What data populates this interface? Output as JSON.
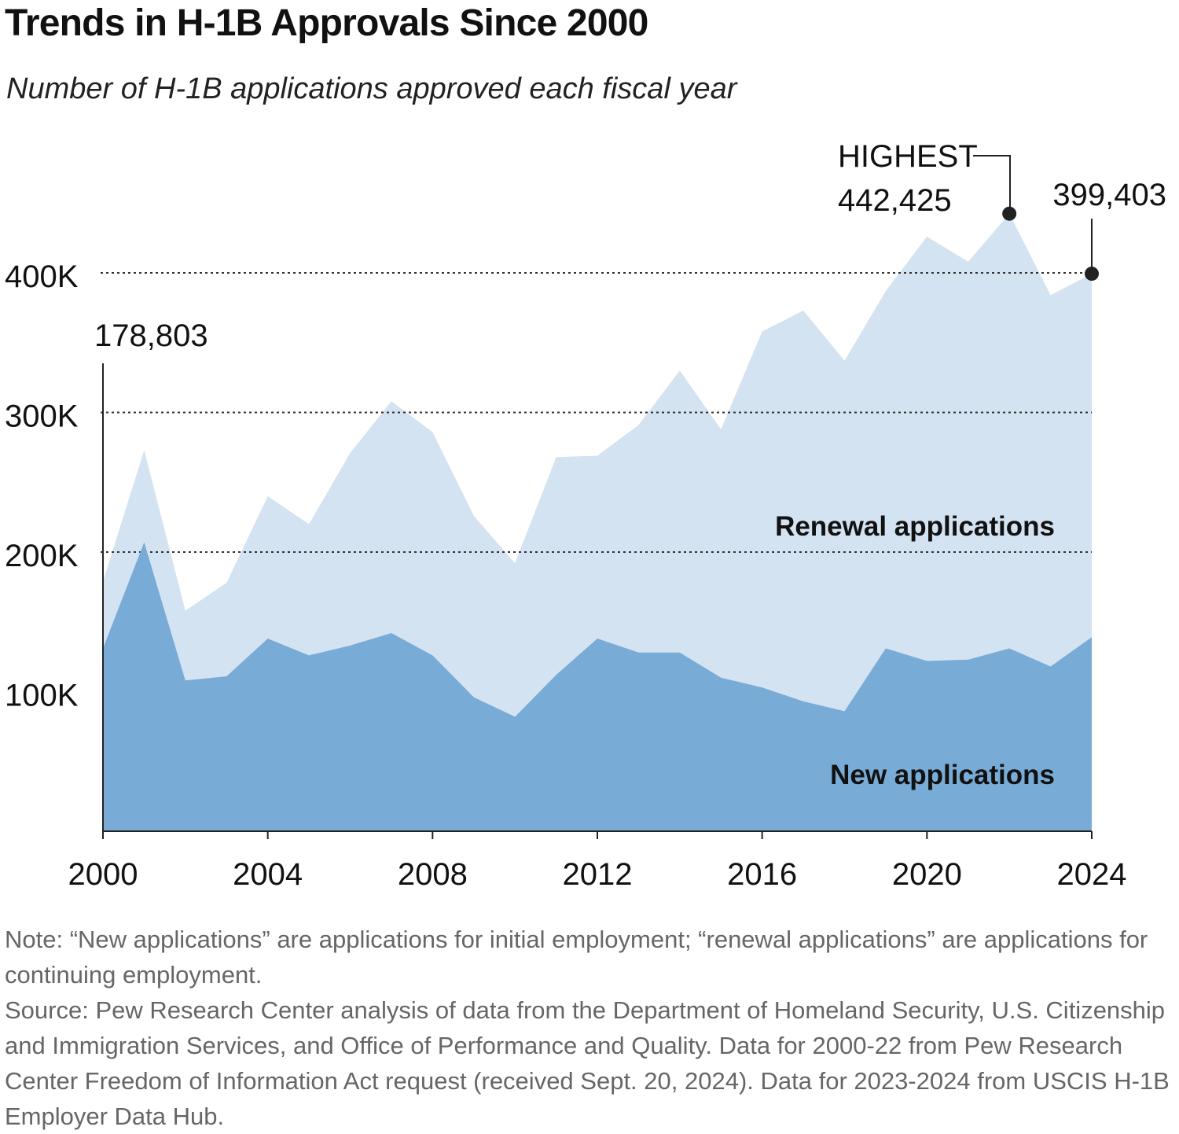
{
  "title": "Trends in H-1B Approvals Since 2000",
  "subtitle": "Number of H-1B applications approved each fiscal year",
  "chart_data": {
    "type": "area",
    "stacked": true,
    "x": [
      2000,
      2001,
      2002,
      2003,
      2004,
      2005,
      2006,
      2007,
      2008,
      2009,
      2010,
      2011,
      2012,
      2013,
      2014,
      2015,
      2016,
      2017,
      2018,
      2019,
      2020,
      2021,
      2022,
      2023,
      2024
    ],
    "series": [
      {
        "name": "New applications",
        "color": "#78abd6",
        "values": [
          131000,
          207000,
          108000,
          111000,
          138000,
          126000,
          133000,
          142000,
          126000,
          96000,
          82000,
          112000,
          138000,
          128000,
          128000,
          110000,
          103000,
          93000,
          86000,
          131000,
          122000,
          123000,
          131000,
          118000,
          139000
        ]
      },
      {
        "name": "Renewal applications",
        "color": "#d3e3f1",
        "values": [
          47803,
          66000,
          50000,
          67000,
          102000,
          94000,
          138000,
          166000,
          160000,
          130000,
          110000,
          156000,
          131000,
          163000,
          202000,
          178000,
          255000,
          280000,
          251000,
          256000,
          304000,
          285000,
          311425,
          266000,
          260403
        ]
      }
    ],
    "totals_marks": {
      "min": 0,
      "max": 470000
    },
    "x_ticks": [
      "2000",
      "2004",
      "2008",
      "2012",
      "2016",
      "2020",
      "2024"
    ],
    "x_tick_values": [
      2000,
      2004,
      2008,
      2012,
      2016,
      2020,
      2024
    ],
    "y_ticks": [
      "100K",
      "200K",
      "300K",
      "400K"
    ],
    "y_tick_values": [
      100000,
      200000,
      300000,
      400000
    ],
    "annotations": {
      "start_value": "178,803",
      "highest_label": "HIGHEST",
      "highest_value": "442,425",
      "highest_year": 2022,
      "highest_total": 442425,
      "end_value": "399,403",
      "end_year": 2024,
      "end_total": 399403
    },
    "grid": "dotted horizontal",
    "legend": "inline labels"
  },
  "notes": {
    "note": "Note: “New applications” are applications for initial employment; “renewal applications” are applications for continuing employment.",
    "source": "Source: Pew Research Center analysis of data from the Department of Homeland Security, U.S. Citizenship and Immigration Services, and Office of Performance and Quality. Data for 2000-22 from Pew Research Center Freedom of Information Act request (received Sept. 20, 2024). Data for 2023-2024 from USCIS H-1B Employer Data Hub."
  }
}
